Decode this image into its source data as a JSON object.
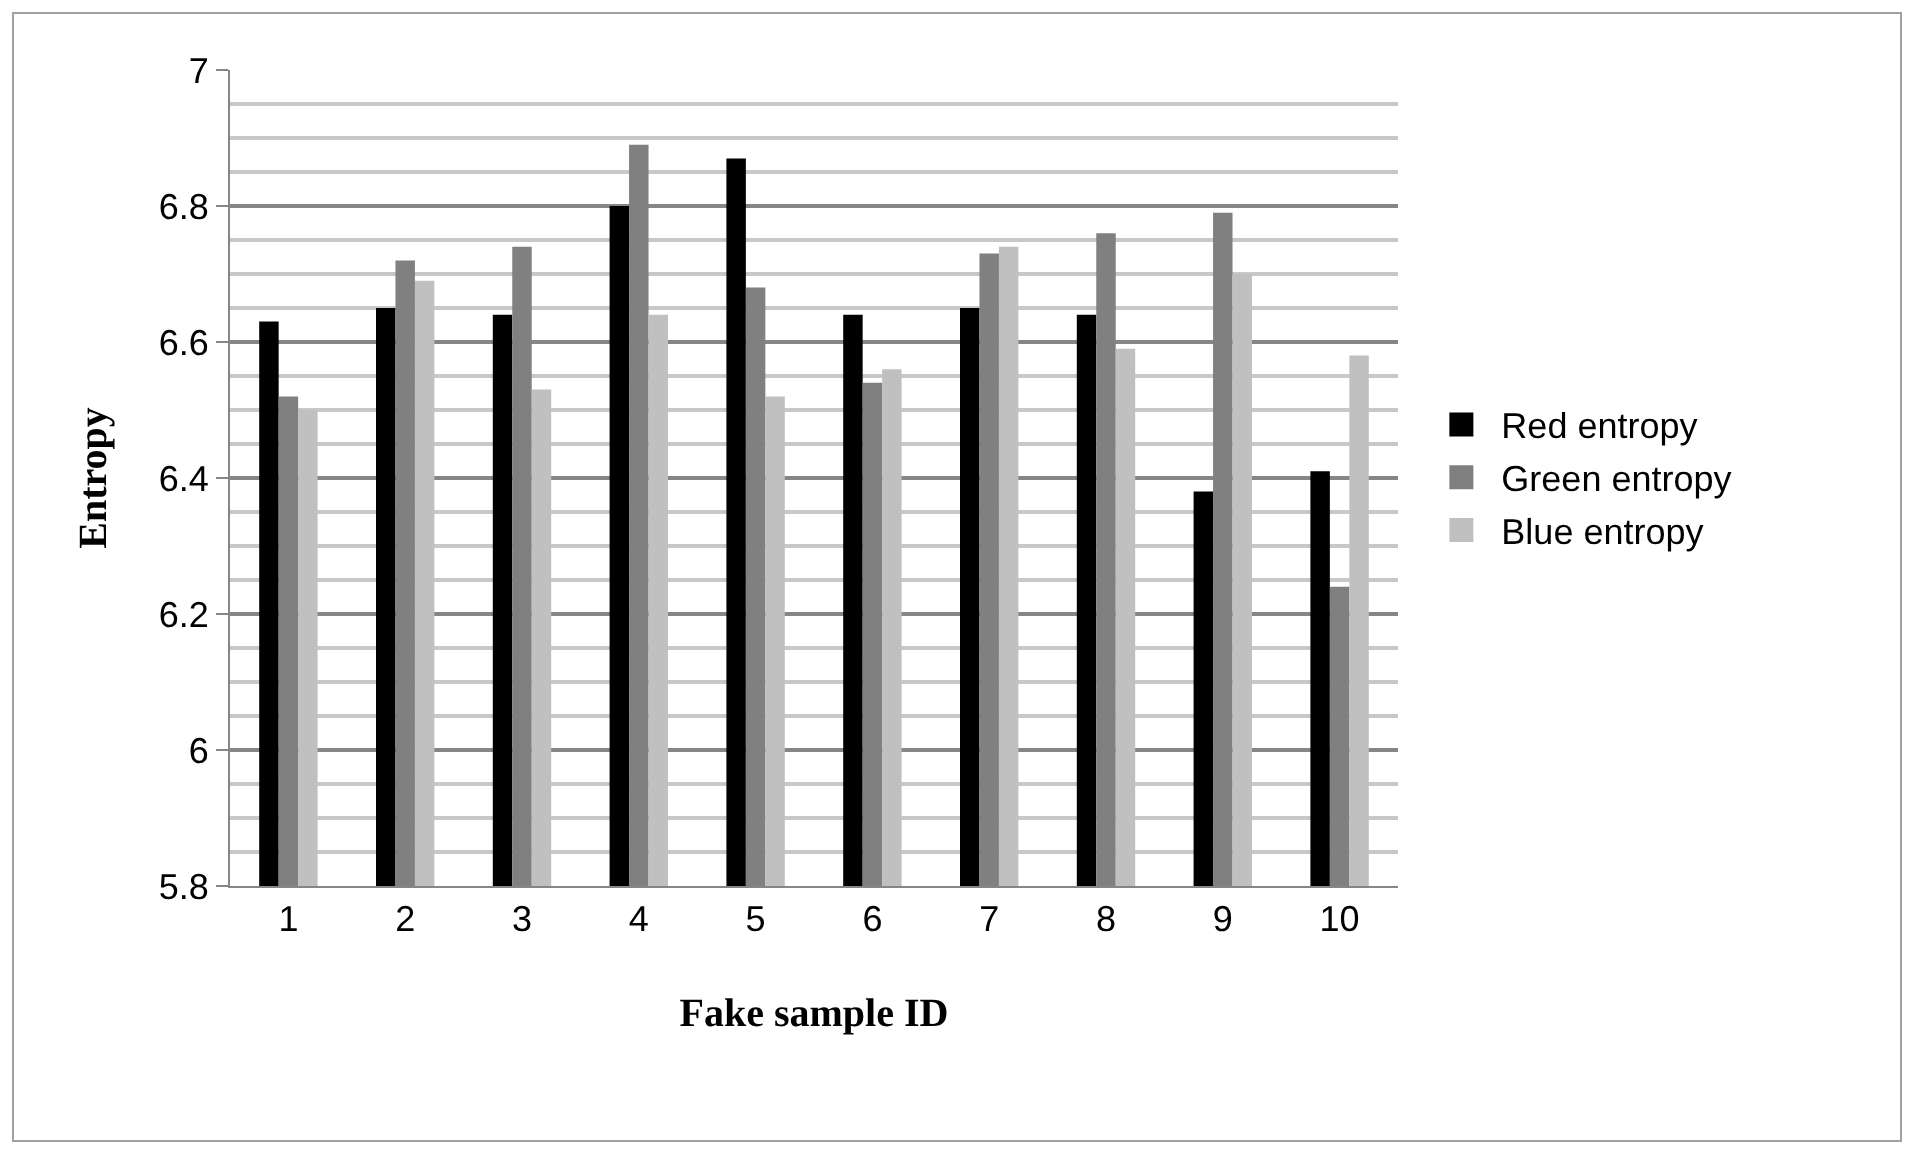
{
  "chart_data": {
    "type": "bar",
    "xlabel": "Fake sample ID",
    "ylabel": "Entropy",
    "categories": [
      "1",
      "2",
      "3",
      "4",
      "5",
      "6",
      "7",
      "8",
      "9",
      "10"
    ],
    "series": [
      {
        "name": "Red entropy",
        "color": "#000000",
        "values": [
          6.63,
          6.65,
          6.64,
          6.8,
          6.87,
          6.64,
          6.65,
          6.64,
          6.38,
          6.41
        ]
      },
      {
        "name": "Green entropy",
        "color": "#808080",
        "values": [
          6.52,
          6.72,
          6.74,
          6.89,
          6.68,
          6.54,
          6.73,
          6.76,
          6.79,
          6.24
        ]
      },
      {
        "name": "Blue entropy",
        "color": "#c0c0c0",
        "values": [
          6.5,
          6.69,
          6.53,
          6.64,
          6.52,
          6.56,
          6.74,
          6.59,
          6.7,
          6.58
        ]
      }
    ],
    "ylim": [
      5.8,
      7
    ],
    "yticks": [
      {
        "value": 5.8,
        "label": "5.8"
      },
      {
        "value": 6,
        "label": "6"
      },
      {
        "value": 6.2,
        "label": "6.2"
      },
      {
        "value": 6.4,
        "label": "6.4"
      },
      {
        "value": 6.6,
        "label": "6.6"
      },
      {
        "value": 6.8,
        "label": "6.8"
      },
      {
        "value": 7,
        "label": "7"
      }
    ],
    "grid": "y",
    "legend": "right"
  }
}
